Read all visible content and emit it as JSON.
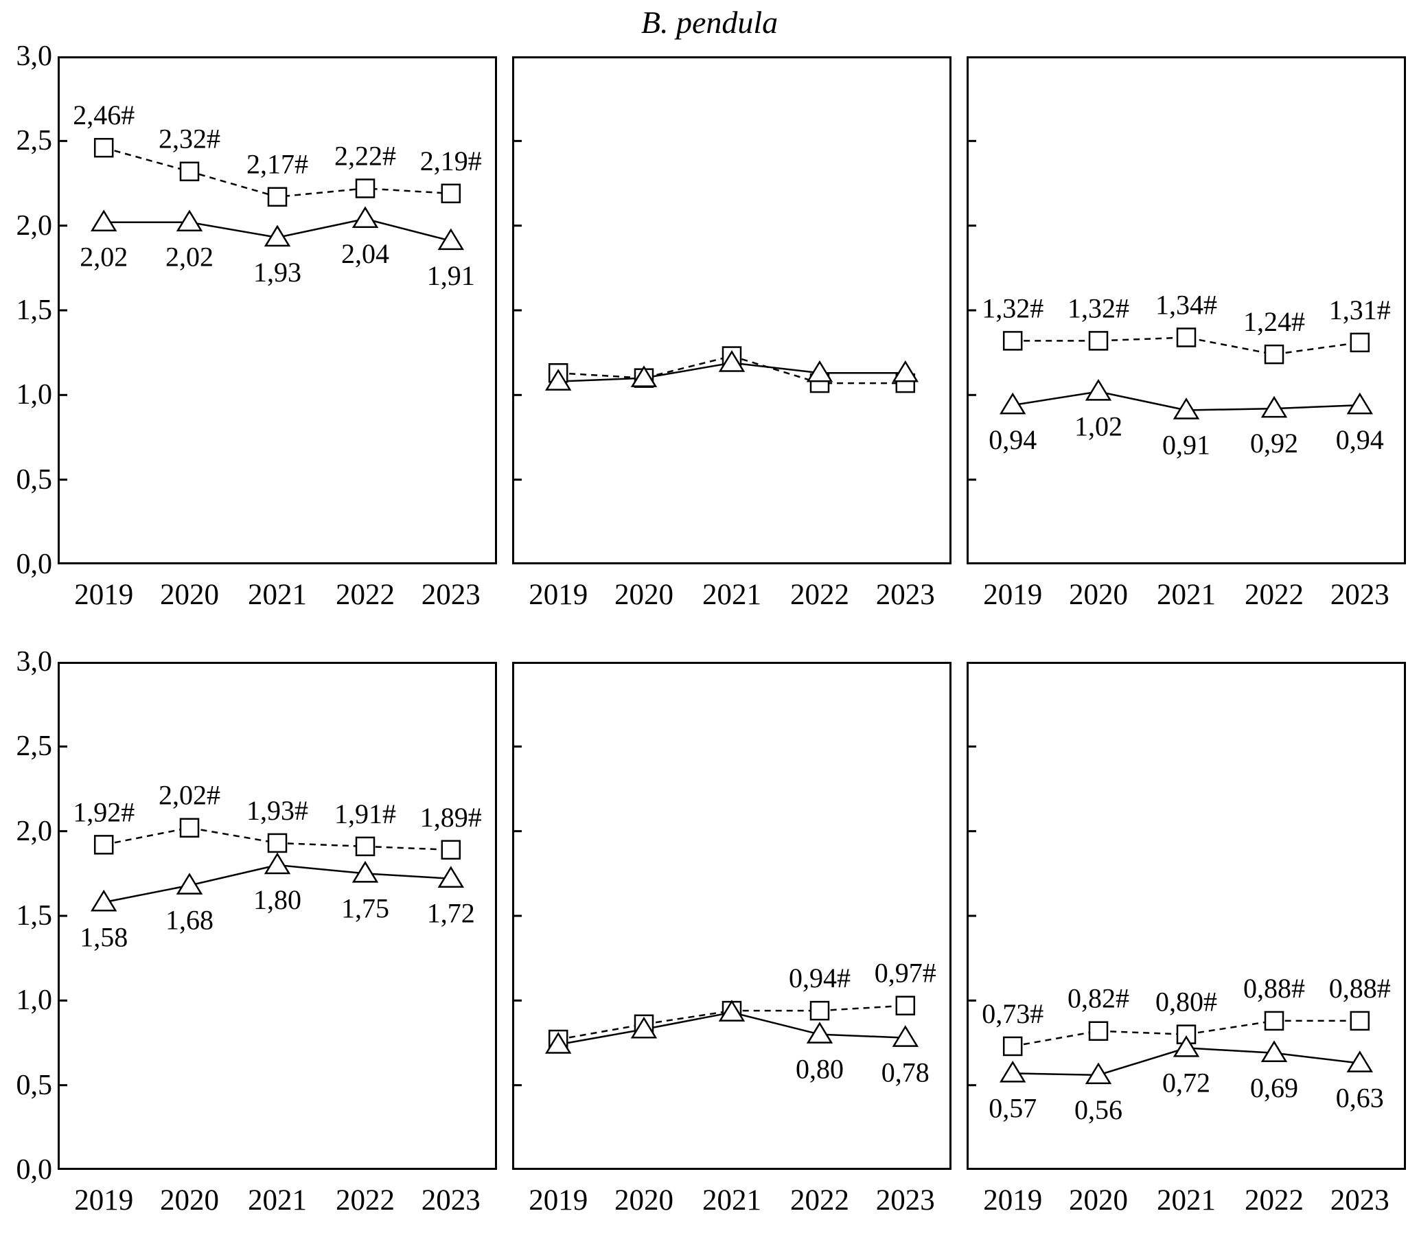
{
  "title": "B. pendula",
  "axes": {
    "x_ticks": [
      "2019",
      "2020",
      "2021",
      "2022",
      "2023"
    ],
    "y_ticks": [
      "3,0",
      "2,5",
      "2,0",
      "1,5",
      "1,0",
      "0,5",
      "0,0"
    ],
    "ylim": [
      0,
      3
    ],
    "grid": false,
    "legend": "none"
  },
  "chart_data": [
    {
      "type": "line",
      "panel": "top-left",
      "x": [
        2019,
        2020,
        2021,
        2022,
        2023
      ],
      "ylim": [
        0,
        3
      ],
      "series": [
        {
          "name": "squares-dashed",
          "marker": "square",
          "line": "dashed",
          "values": [
            2.46,
            2.32,
            2.17,
            2.22,
            2.19
          ],
          "labels": [
            "2,46#",
            "2,32#",
            "2,17#",
            "2,22#",
            "2,19#"
          ],
          "label_pos": "above"
        },
        {
          "name": "triangles-solid",
          "marker": "triangle",
          "line": "solid",
          "values": [
            2.02,
            2.02,
            1.93,
            2.04,
            1.91
          ],
          "labels": [
            "2,02",
            "2,02",
            "1,93",
            "2,04",
            "1,91"
          ],
          "label_pos": "below"
        }
      ]
    },
    {
      "type": "line",
      "panel": "top-middle",
      "x": [
        2019,
        2020,
        2021,
        2022,
        2023
      ],
      "ylim": [
        0,
        3
      ],
      "series": [
        {
          "name": "squares-dashed",
          "marker": "square",
          "line": "dashed",
          "values": [
            1.13,
            1.1,
            1.23,
            1.07,
            1.07
          ],
          "labels": [
            "",
            "",
            "",
            "",
            ""
          ],
          "label_pos": "above"
        },
        {
          "name": "triangles-solid",
          "marker": "triangle",
          "line": "solid",
          "values": [
            1.08,
            1.1,
            1.19,
            1.13,
            1.13
          ],
          "labels": [
            "",
            "",
            "",
            "",
            ""
          ],
          "label_pos": "below"
        }
      ]
    },
    {
      "type": "line",
      "panel": "top-right",
      "x": [
        2019,
        2020,
        2021,
        2022,
        2023
      ],
      "ylim": [
        0,
        3
      ],
      "series": [
        {
          "name": "squares-dashed",
          "marker": "square",
          "line": "dashed",
          "values": [
            1.32,
            1.32,
            1.34,
            1.24,
            1.31
          ],
          "labels": [
            "1,32#",
            "1,32#",
            "1,34#",
            "1,24#",
            "1,31#"
          ],
          "label_pos": "above"
        },
        {
          "name": "triangles-solid",
          "marker": "triangle",
          "line": "solid",
          "values": [
            0.94,
            1.02,
            0.91,
            0.92,
            0.94
          ],
          "labels": [
            "0,94",
            "1,02",
            "0,91",
            "0,92",
            "0,94"
          ],
          "label_pos": "below"
        }
      ]
    },
    {
      "type": "line",
      "panel": "bottom-left",
      "x": [
        2019,
        2020,
        2021,
        2022,
        2023
      ],
      "ylim": [
        0,
        3
      ],
      "series": [
        {
          "name": "squares-dashed",
          "marker": "square",
          "line": "dashed",
          "values": [
            1.92,
            2.02,
            1.93,
            1.91,
            1.89
          ],
          "labels": [
            "1,92#",
            "2,02#",
            "1,93#",
            "1,91#",
            "1,89#"
          ],
          "label_pos": "above"
        },
        {
          "name": "triangles-solid",
          "marker": "triangle",
          "line": "solid",
          "values": [
            1.58,
            1.68,
            1.8,
            1.75,
            1.72
          ],
          "labels": [
            "1,58",
            "1,68",
            "1,80",
            "1,75",
            "1,72"
          ],
          "label_pos": "below"
        }
      ]
    },
    {
      "type": "line",
      "panel": "bottom-middle",
      "x": [
        2019,
        2020,
        2021,
        2022,
        2023
      ],
      "ylim": [
        0,
        3
      ],
      "series": [
        {
          "name": "squares-dashed",
          "marker": "square",
          "line": "dashed",
          "values": [
            0.77,
            0.86,
            0.94,
            0.94,
            0.97
          ],
          "labels": [
            "",
            "",
            "",
            "0,94#",
            "0,97#"
          ],
          "label_pos": "above"
        },
        {
          "name": "triangles-solid",
          "marker": "triangle",
          "line": "solid",
          "values": [
            0.74,
            0.83,
            0.93,
            0.8,
            0.78
          ],
          "labels": [
            "",
            "",
            "",
            "0,80",
            "0,78"
          ],
          "label_pos": "below"
        }
      ]
    },
    {
      "type": "line",
      "panel": "bottom-right",
      "x": [
        2019,
        2020,
        2021,
        2022,
        2023
      ],
      "ylim": [
        0,
        3
      ],
      "series": [
        {
          "name": "squares-dashed",
          "marker": "square",
          "line": "dashed",
          "values": [
            0.73,
            0.82,
            0.8,
            0.88,
            0.88
          ],
          "labels": [
            "0,73#",
            "0,82#",
            "0,80#",
            "0,88#",
            "0,88#"
          ],
          "label_pos": "above"
        },
        {
          "name": "triangles-solid",
          "marker": "triangle",
          "line": "solid",
          "values": [
            0.57,
            0.56,
            0.72,
            0.69,
            0.63
          ],
          "labels": [
            "0,57",
            "0,56",
            "0,72",
            "0,69",
            "0,63"
          ],
          "label_pos": "below"
        }
      ]
    }
  ],
  "colors": {
    "line": "#000000",
    "marker_fill": "#ffffff",
    "background": "#ffffff"
  }
}
